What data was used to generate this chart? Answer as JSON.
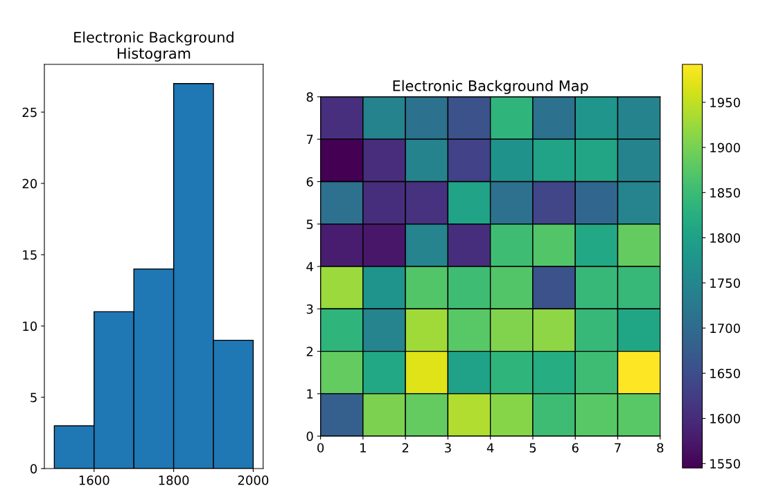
{
  "chart_data": [
    {
      "type": "histogram",
      "title": "Electronic Background\nHistogram",
      "bins": [
        1500,
        1600,
        1700,
        1800,
        1900,
        2000
      ],
      "values": [
        3,
        11,
        14,
        27,
        9
      ],
      "color": "#1f77b4",
      "xlim": [
        1475,
        2025
      ],
      "xticks": [
        1600,
        1800,
        2000
      ],
      "ylim": [
        0,
        28.35
      ],
      "yticks": [
        0,
        5,
        10,
        15,
        20,
        25
      ],
      "grid": false
    },
    {
      "type": "heatmap",
      "title": "Electronic Background Map",
      "xlim": [
        0,
        8
      ],
      "xticks": [
        0,
        1,
        2,
        3,
        4,
        5,
        6,
        7,
        8
      ],
      "ylim": [
        0,
        8
      ],
      "yticks": [
        0,
        1,
        2,
        3,
        4,
        5,
        6,
        7,
        8
      ],
      "clim": [
        1545,
        1992
      ],
      "cticks": [
        1550,
        1600,
        1650,
        1700,
        1750,
        1800,
        1850,
        1900,
        1950
      ],
      "grid": false,
      "cells": [
        [
          1605,
          1745,
          1712,
          1657,
          1836,
          1712,
          1778,
          1745
        ],
        [
          1545,
          1602,
          1745,
          1634,
          1773,
          1805,
          1808,
          1745
        ],
        [
          1710,
          1603,
          1608,
          1804,
          1710,
          1639,
          1693,
          1746
        ],
        [
          1581,
          1572,
          1746,
          1603,
          1853,
          1871,
          1813,
          1885
        ],
        [
          1925,
          1777,
          1871,
          1853,
          1871,
          1657,
          1845,
          1845
        ],
        [
          1836,
          1746,
          1929,
          1876,
          1907,
          1916,
          1845,
          1809
        ],
        [
          1885,
          1813,
          1970,
          1802,
          1836,
          1822,
          1853,
          1992
        ],
        [
          1679,
          1903,
          1885,
          1938,
          1911,
          1853,
          1876,
          1876
        ]
      ]
    }
  ]
}
